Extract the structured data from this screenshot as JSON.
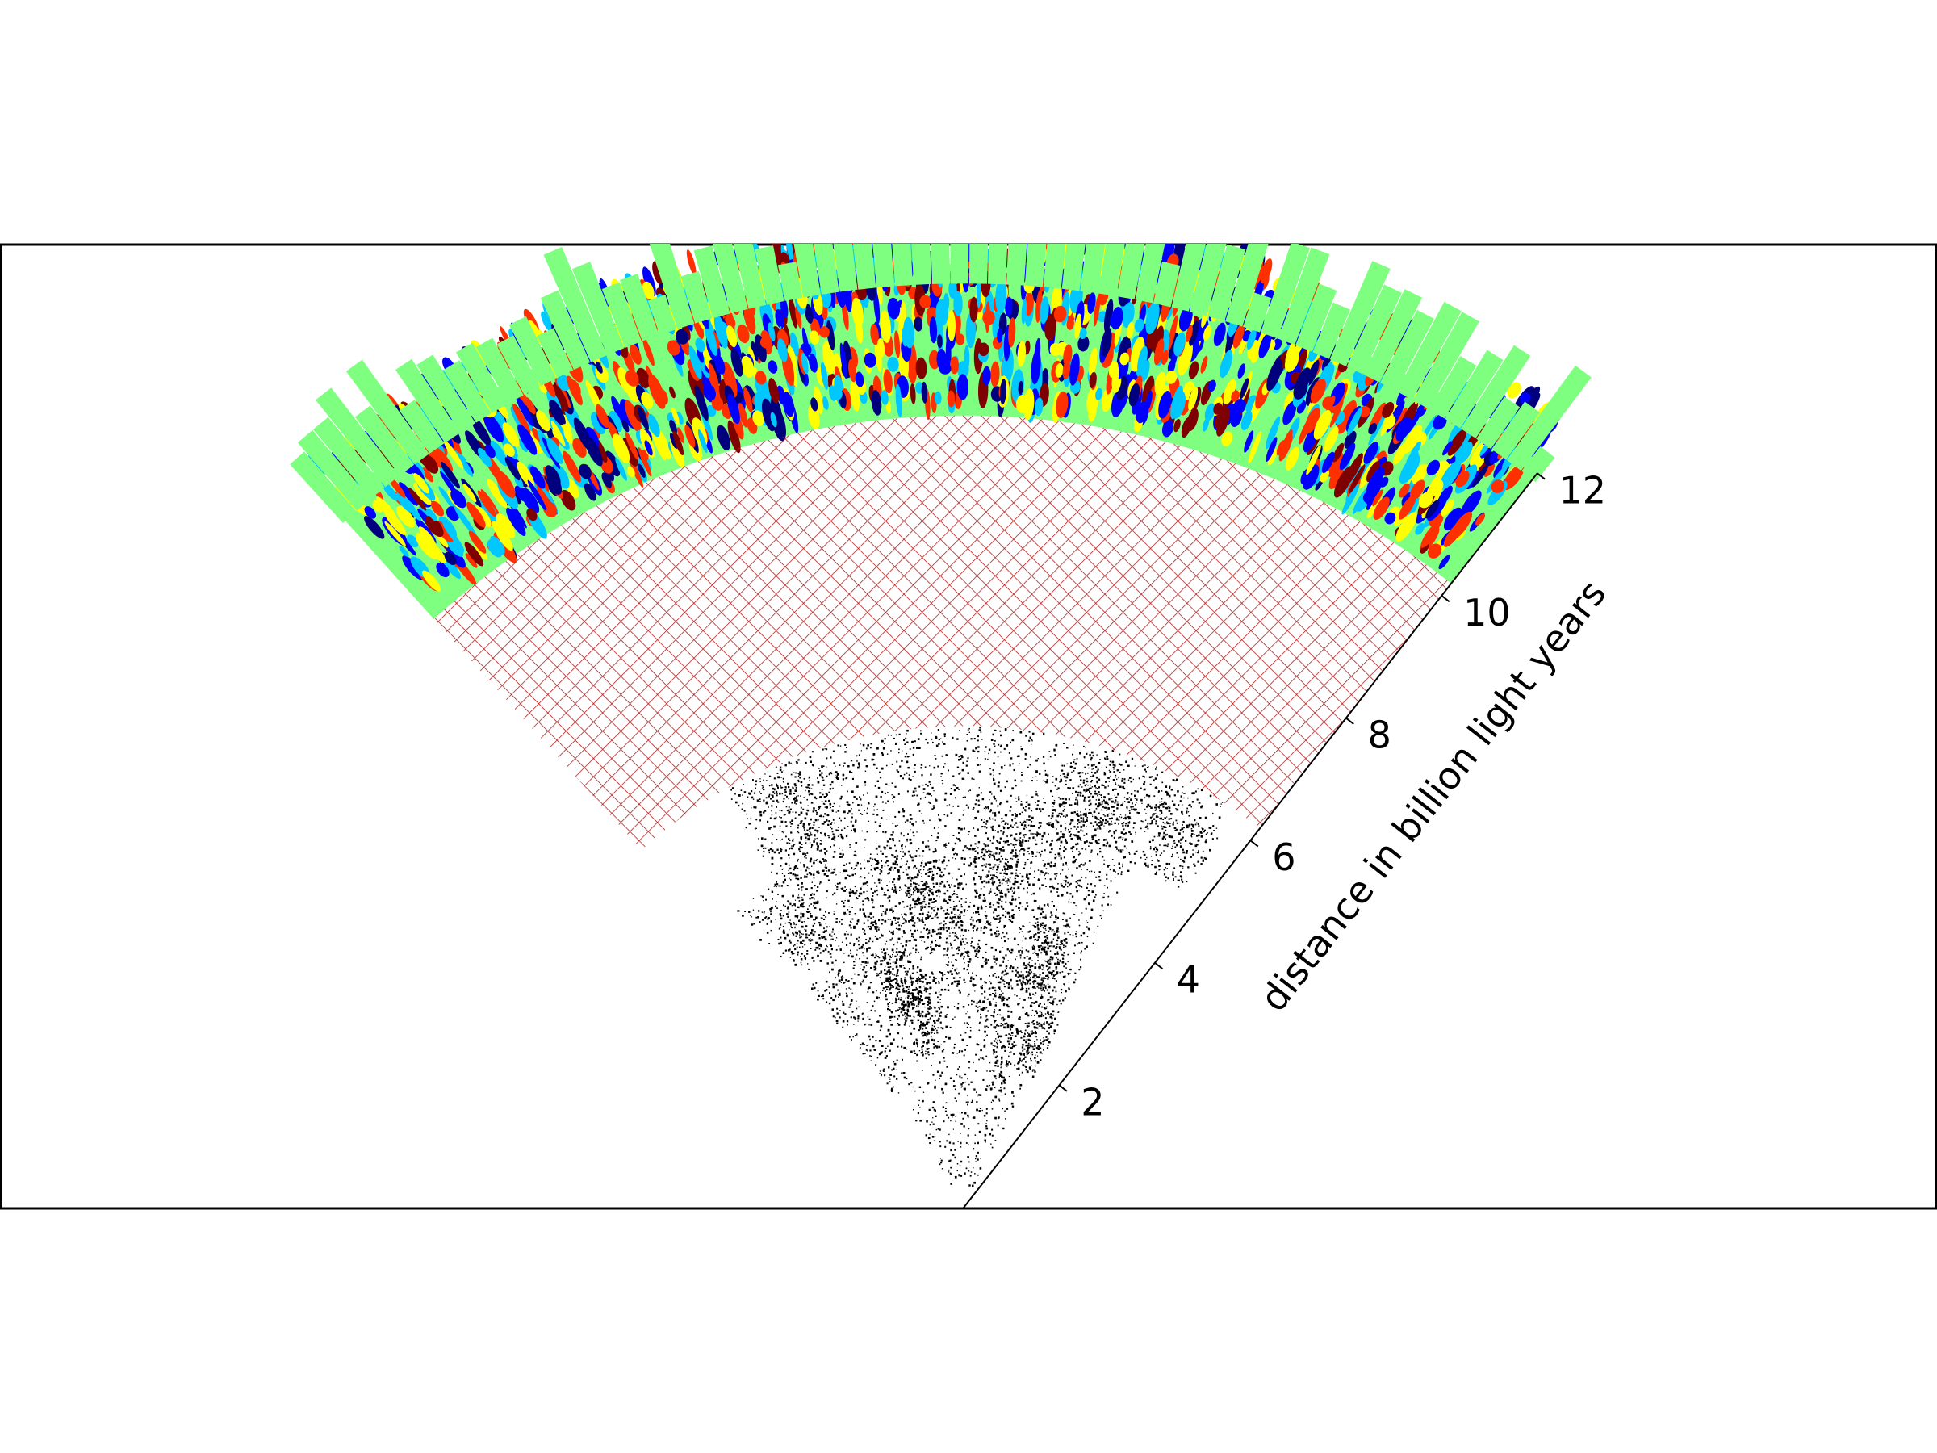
{
  "chart_data": {
    "type": "wedge-map",
    "title": "",
    "radial_axis": {
      "label": "distance in billion light years",
      "unit": "billion light years",
      "ticks": [
        2,
        4,
        6,
        8,
        10,
        12
      ],
      "range": [
        0,
        12
      ]
    },
    "regions": [
      {
        "name": "galaxy-scatter",
        "type": "scatter",
        "r_range": [
          0,
          6.2
        ],
        "color": "#000000"
      },
      {
        "name": "hatched-gap",
        "type": "hatch",
        "r_range": [
          6.2,
          10.2
        ],
        "color": "#b21f1f"
      },
      {
        "name": "intensity-map",
        "type": "heatmap",
        "r_range": [
          10.2,
          12.2
        ],
        "colors": [
          "#00007f",
          "#0000ff",
          "#00c8ff",
          "#7fff7f",
          "#ffff00",
          "#ff3000",
          "#7f0000"
        ]
      }
    ]
  }
}
